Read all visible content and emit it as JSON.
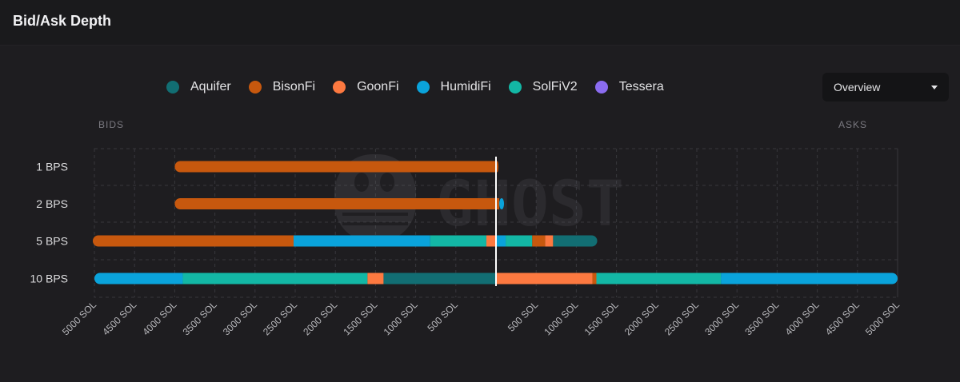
{
  "header": {
    "title": "Bid/Ask Depth"
  },
  "legend": [
    {
      "name": "Aquifer",
      "color": "#126e73"
    },
    {
      "name": "BisonFi",
      "color": "#c7580e"
    },
    {
      "name": "GoonFi",
      "color": "#fd7940"
    },
    {
      "name": "HumidiFi",
      "color": "#0aa3db"
    },
    {
      "name": "SolFiV2",
      "color": "#13b7a5"
    },
    {
      "name": "Tessera",
      "color": "#8b6cf0"
    }
  ],
  "dropdown": {
    "value": "Overview"
  },
  "watermark": {
    "text": "GHOST",
    "icon": "ghost-icon"
  },
  "chart_data": {
    "type": "bar",
    "orientation": "horizontal",
    "side_labels": {
      "bids": "BIDS",
      "asks": "ASKS"
    },
    "categories": [
      "1 BPS",
      "2 BPS",
      "5 BPS",
      "10 BPS"
    ],
    "xlim": [
      -5000,
      5000
    ],
    "x_ticks": [
      -5000,
      -4500,
      -4000,
      -3500,
      -3000,
      -2500,
      -2000,
      -1500,
      -1000,
      -500,
      500,
      1000,
      1500,
      2000,
      2500,
      3000,
      3500,
      4000,
      4500,
      5000
    ],
    "x_tick_labels": [
      "5000 SOL",
      "4500 SOL",
      "4000 SOL",
      "3500 SOL",
      "3000 SOL",
      "2500 SOL",
      "2000 SOL",
      "1500 SOL",
      "1000 SOL",
      "500 SOL",
      "500 SOL",
      "1000 SOL",
      "1500 SOL",
      "2000 SOL",
      "2500 SOL",
      "3000 SOL",
      "3500 SOL",
      "4000 SOL",
      "4500 SOL",
      "5000 SOL"
    ],
    "unit": "SOL",
    "grid": true,
    "stacking": "cumulative outward from center (bids left, asks right)",
    "rows": [
      {
        "category": "1 BPS",
        "bids": [
          {
            "series": "BisonFi",
            "value": 4000
          }
        ],
        "asks": [
          {
            "series": "BisonFi",
            "value": 30
          }
        ]
      },
      {
        "category": "2 BPS",
        "bids": [
          {
            "series": "BisonFi",
            "value": 4000
          }
        ],
        "asks": [
          {
            "series": "BisonFi",
            "value": 40
          },
          {
            "series": "HumidiFi",
            "value": 60
          }
        ]
      },
      {
        "category": "5 BPS",
        "bids": [
          {
            "series": "GoonFi",
            "value": 120
          },
          {
            "series": "SolFiV2",
            "value": 700
          },
          {
            "series": "HumidiFi",
            "value": 1700
          },
          {
            "series": "BisonFi",
            "value": 2500
          }
        ],
        "asks": [
          {
            "series": "HumidiFi",
            "value": 120
          },
          {
            "series": "SolFiV2",
            "value": 330
          },
          {
            "series": "BisonFi",
            "value": 160
          },
          {
            "series": "GoonFi",
            "value": 100
          },
          {
            "series": "Aquifer",
            "value": 550
          }
        ]
      },
      {
        "category": "10 BPS",
        "bids": [
          {
            "series": "Aquifer",
            "value": 1400
          },
          {
            "series": "GoonFi",
            "value": 200
          },
          {
            "series": "SolFiV2",
            "value": 2300
          },
          {
            "series": "HumidiFi",
            "value": 1100
          }
        ],
        "asks": [
          {
            "series": "GoonFi",
            "value": 1200
          },
          {
            "series": "BisonFi",
            "value": 50
          },
          {
            "series": "SolFiV2",
            "value": 1550
          },
          {
            "series": "HumidiFi",
            "value": 2200
          }
        ]
      }
    ]
  }
}
